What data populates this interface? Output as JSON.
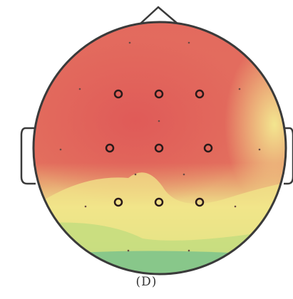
{
  "chart_data": {
    "type": "heatmap",
    "title": "",
    "panel_label": "(D)",
    "colorscale": [
      "#6fbf8f",
      "#d9e27a",
      "#f3e98a",
      "#f1a477",
      "#e0605a"
    ],
    "highlighted_electrodes": [
      {
        "id": "e1",
        "row": 1,
        "col": 1
      },
      {
        "id": "e2",
        "row": 1,
        "col": 2
      },
      {
        "id": "e3",
        "row": 1,
        "col": 3
      },
      {
        "id": "e4",
        "row": 2,
        "col": 1
      },
      {
        "id": "e5",
        "row": 2,
        "col": 2
      },
      {
        "id": "e6",
        "row": 2,
        "col": 3
      },
      {
        "id": "e7",
        "row": 3,
        "col": 1
      },
      {
        "id": "e8",
        "row": 3,
        "col": 2
      },
      {
        "id": "e9",
        "row": 3,
        "col": 3
      }
    ]
  }
}
